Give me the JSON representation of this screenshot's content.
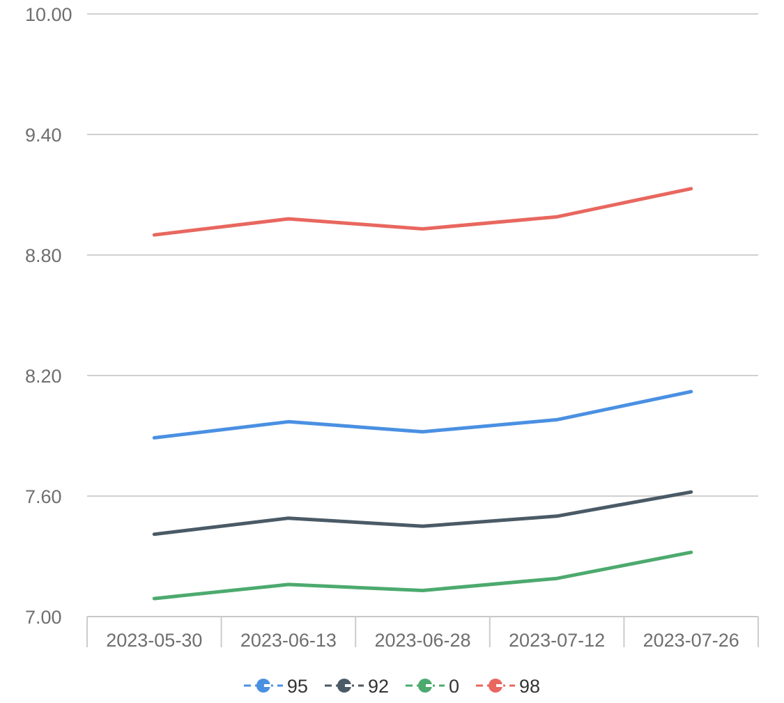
{
  "chart_data": {
    "type": "line",
    "x": [
      "2023-05-30",
      "2023-06-13",
      "2023-06-28",
      "2023-07-12",
      "2023-07-26"
    ],
    "ylim": [
      7.0,
      10.0
    ],
    "yticks": [
      "7.00",
      "7.60",
      "8.20",
      "8.80",
      "9.40",
      "10.00"
    ],
    "grid": true,
    "legend_position": "bottom-center",
    "series": [
      {
        "name": "95",
        "color": "#4a90e2",
        "values": [
          7.89,
          7.97,
          7.92,
          7.98,
          8.12
        ]
      },
      {
        "name": "92",
        "color": "#4a5a66",
        "values": [
          7.41,
          7.49,
          7.45,
          7.5,
          7.62
        ]
      },
      {
        "name": "0",
        "color": "#4caa6e",
        "values": [
          7.09,
          7.16,
          7.13,
          7.19,
          7.32
        ]
      },
      {
        "name": "98",
        "color": "#e8675f",
        "values": [
          8.9,
          8.98,
          8.93,
          8.99,
          9.13
        ]
      }
    ]
  }
}
